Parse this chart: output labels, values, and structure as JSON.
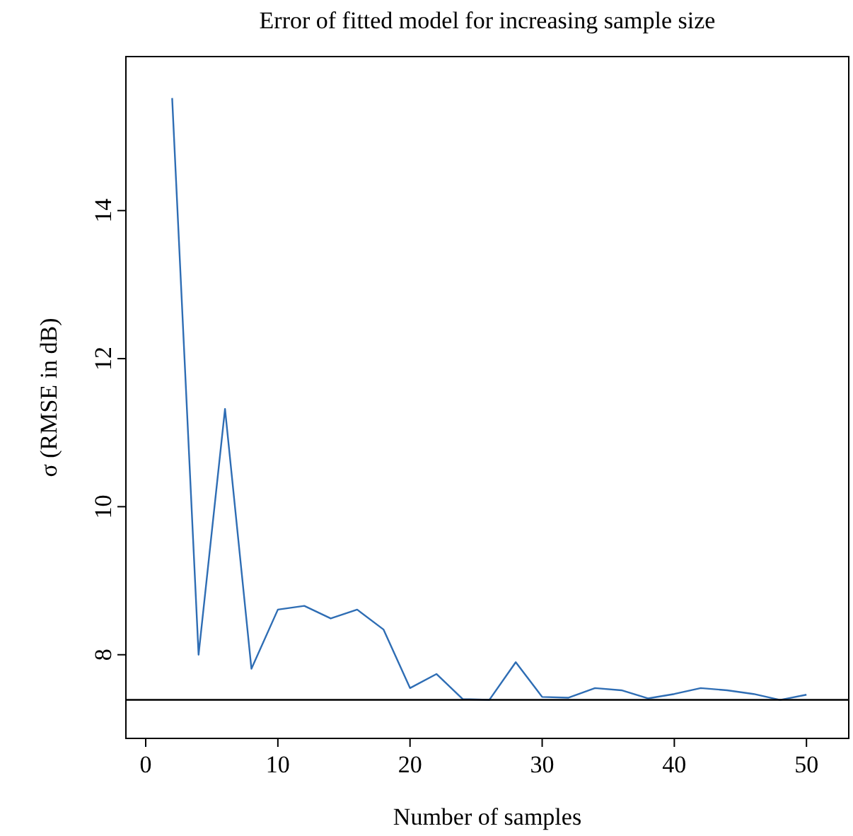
{
  "chart_data": {
    "type": "line",
    "title": "Error of fitted model for increasing sample size",
    "xlabel": "Number of samples",
    "ylabel": "σ (RMSE in dB)",
    "x": [
      2,
      4,
      6,
      8,
      10,
      12,
      14,
      16,
      18,
      20,
      22,
      24,
      26,
      28,
      30,
      32,
      34,
      36,
      38,
      40,
      42,
      44,
      46,
      48,
      50
    ],
    "series": [
      {
        "color": "#2e6db4",
        "values": [
          15.52,
          8.0,
          11.32,
          7.81,
          8.61,
          8.66,
          8.49,
          8.61,
          8.34,
          7.55,
          7.74,
          7.4,
          7.39,
          7.9,
          7.43,
          7.42,
          7.55,
          7.52,
          7.41,
          7.47,
          7.55,
          7.52,
          7.47,
          7.39,
          7.46
        ]
      }
    ],
    "ref_lines": [
      {
        "axis": "y",
        "value": 7.39,
        "color": "#000000"
      }
    ],
    "xlim": [
      -1.5,
      53.2
    ],
    "ylim": [
      6.87,
      16.08
    ],
    "xticks": [
      0,
      10,
      20,
      30,
      40,
      50
    ],
    "yticks": [
      8,
      10,
      12,
      14
    ],
    "grid": false,
    "marker": "none",
    "line_style": "solid"
  }
}
